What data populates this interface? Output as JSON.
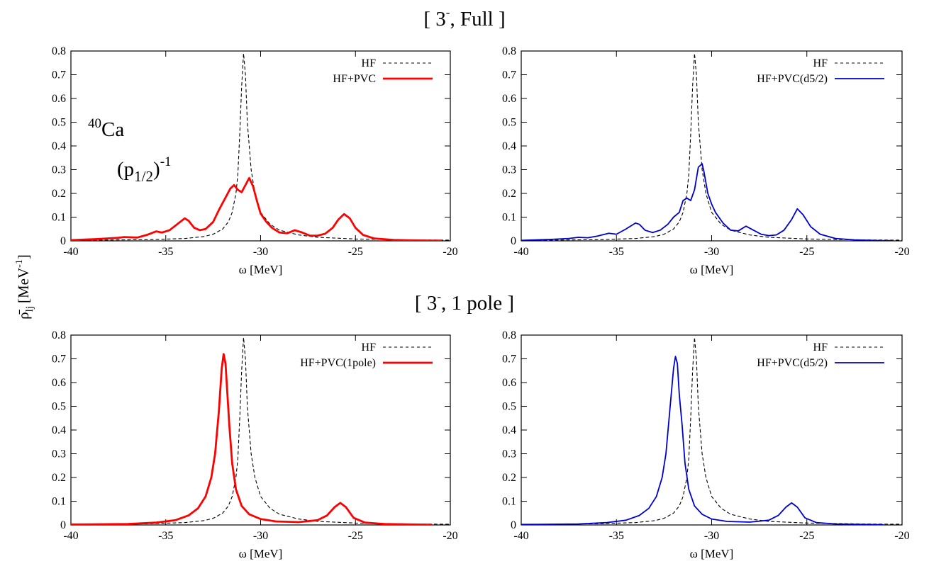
{
  "figure": {
    "row_titles": [
      {
        "base": "[ 3",
        "sup": "-",
        "rest": ", Full ]"
      },
      {
        "base": "[ 3",
        "sup": "-",
        "rest": ", 1 pole ]"
      }
    ],
    "shared_ylabel": {
      "base": "ρ̄",
      "sub": "lj",
      "unit": "[MeV",
      "sup": "-1",
      "close": "]"
    },
    "annotation": {
      "nucleus_mass": "40",
      "nucleus": "Ca",
      "orbital_open": "(p",
      "orbital_sub": "1/2",
      "orbital_close": ")",
      "orbital_sup": "-1"
    },
    "colors": {
      "hf": "#000000",
      "red": "#ff0000",
      "blue": "#0000cc"
    }
  },
  "chart_data": [
    {
      "type": "line",
      "panel": "full-left",
      "xlabel": "ω [MeV]",
      "xlim": [
        -40,
        -20
      ],
      "ylim": [
        0,
        0.8
      ],
      "xticks": [
        -40,
        -35,
        -30,
        -25,
        -20
      ],
      "yticks": [
        0,
        0.1,
        0.2,
        0.3,
        0.4,
        0.5,
        0.6,
        0.7,
        0.8
      ],
      "xtick_labels": [
        "-40",
        "-35",
        "-30",
        "-25",
        "-20"
      ],
      "ytick_labels": [
        "0",
        "0.1",
        "0.2",
        "0.3",
        "0.4",
        "0.5",
        "0.6",
        "0.7",
        "0.8"
      ],
      "legend_position": "top-right",
      "series": [
        {
          "name": "HF",
          "style": "dashed",
          "color": "#000000",
          "x": [
            -40,
            -36,
            -34,
            -33,
            -32.5,
            -32,
            -31.7,
            -31.5,
            -31.3,
            -31.2,
            -31.1,
            -31.0,
            -30.9,
            -30.8,
            -30.7,
            -30.5,
            -30.3,
            -30.0,
            -29.5,
            -29.0,
            -28,
            -27,
            -25,
            -22,
            -20
          ],
          "y": [
            0.002,
            0.005,
            0.01,
            0.018,
            0.028,
            0.05,
            0.08,
            0.12,
            0.2,
            0.28,
            0.45,
            0.65,
            0.79,
            0.7,
            0.5,
            0.3,
            0.2,
            0.12,
            0.07,
            0.045,
            0.025,
            0.015,
            0.008,
            0.004,
            0.003
          ]
        },
        {
          "name": "HF+PVC",
          "style": "solid",
          "color": "#ff0000",
          "x": [
            -40,
            -38.5,
            -37.5,
            -37.2,
            -36.5,
            -36,
            -35.5,
            -35.2,
            -34.8,
            -34.4,
            -34.0,
            -33.8,
            -33.5,
            -33.2,
            -32.9,
            -32.5,
            -32.2,
            -31.8,
            -31.6,
            -31.4,
            -31.2,
            -31.0,
            -30.8,
            -30.6,
            -30.4,
            -30.2,
            -30.0,
            -29.7,
            -29.4,
            -29.0,
            -28.6,
            -28.2,
            -27.8,
            -27.4,
            -27.0,
            -26.6,
            -26.2,
            -25.9,
            -25.6,
            -25.3,
            -25.0,
            -24.6,
            -24.0,
            -23,
            -22,
            -21,
            -20.5
          ],
          "y": [
            0.003,
            0.008,
            0.013,
            0.016,
            0.014,
            0.025,
            0.04,
            0.035,
            0.045,
            0.07,
            0.095,
            0.085,
            0.055,
            0.045,
            0.05,
            0.08,
            0.13,
            0.19,
            0.22,
            0.235,
            0.215,
            0.205,
            0.235,
            0.265,
            0.23,
            0.17,
            0.115,
            0.08,
            0.055,
            0.035,
            0.032,
            0.045,
            0.035,
            0.022,
            0.022,
            0.03,
            0.055,
            0.09,
            0.113,
            0.095,
            0.055,
            0.025,
            0.01,
            0.004,
            0.002,
            0.001,
            0.001
          ]
        }
      ]
    },
    {
      "type": "line",
      "panel": "full-right",
      "xlabel": "ω [MeV]",
      "xlim": [
        -40,
        -20
      ],
      "ylim": [
        0,
        0.8
      ],
      "xticks": [
        -40,
        -35,
        -30,
        -25,
        -20
      ],
      "yticks": [
        0,
        0.1,
        0.2,
        0.3,
        0.4,
        0.5,
        0.6,
        0.7,
        0.8
      ],
      "xtick_labels": [
        "-40",
        "-35",
        "-30",
        "-25",
        "-20"
      ],
      "ytick_labels": [
        "0",
        "0.1",
        "0.2",
        "0.3",
        "0.4",
        "0.5",
        "0.6",
        "0.7",
        "0.8"
      ],
      "legend_position": "top-right",
      "series": [
        {
          "name": "HF",
          "style": "dashed",
          "color": "#000000",
          "x": [
            -40,
            -36,
            -34,
            -33,
            -32.5,
            -32,
            -31.7,
            -31.5,
            -31.3,
            -31.2,
            -31.1,
            -31.0,
            -30.9,
            -30.8,
            -30.7,
            -30.5,
            -30.3,
            -30.0,
            -29.5,
            -29.0,
            -28,
            -27,
            -25,
            -22,
            -20
          ],
          "y": [
            0.002,
            0.005,
            0.01,
            0.018,
            0.028,
            0.05,
            0.08,
            0.12,
            0.2,
            0.28,
            0.45,
            0.65,
            0.79,
            0.7,
            0.5,
            0.3,
            0.2,
            0.12,
            0.07,
            0.045,
            0.025,
            0.015,
            0.008,
            0.004,
            0.003
          ]
        },
        {
          "name": "HF+PVC(d5/2)",
          "style": "solid",
          "color": "#0000cc",
          "x": [
            -40,
            -38.5,
            -37.5,
            -37.0,
            -36.5,
            -36,
            -35.4,
            -35.0,
            -34.5,
            -34.0,
            -33.8,
            -33.5,
            -33.1,
            -32.7,
            -32.3,
            -32.0,
            -31.7,
            -31.5,
            -31.3,
            -31.1,
            -30.9,
            -30.7,
            -30.5,
            -30.4,
            -30.2,
            -30.0,
            -29.8,
            -29.4,
            -29.0,
            -28.6,
            -28.2,
            -27.8,
            -27.4,
            -27.0,
            -26.6,
            -26.2,
            -25.8,
            -25.5,
            -25.2,
            -24.8,
            -24.3,
            -23.5,
            -22.5,
            -21,
            -20.5
          ],
          "y": [
            0.002,
            0.006,
            0.01,
            0.015,
            0.013,
            0.02,
            0.032,
            0.028,
            0.05,
            0.075,
            0.07,
            0.045,
            0.035,
            0.045,
            0.07,
            0.1,
            0.12,
            0.17,
            0.18,
            0.17,
            0.215,
            0.31,
            0.325,
            0.29,
            0.2,
            0.155,
            0.12,
            0.075,
            0.045,
            0.042,
            0.062,
            0.045,
            0.028,
            0.022,
            0.025,
            0.045,
            0.09,
            0.135,
            0.11,
            0.06,
            0.028,
            0.01,
            0.004,
            0.001,
            0.001
          ]
        }
      ]
    },
    {
      "type": "line",
      "panel": "pole-left",
      "xlabel": "ω [MeV]",
      "xlim": [
        -40,
        -20
      ],
      "ylim": [
        0,
        0.8
      ],
      "xticks": [
        -40,
        -35,
        -30,
        -25,
        -20
      ],
      "yticks": [
        0,
        0.1,
        0.2,
        0.3,
        0.4,
        0.5,
        0.6,
        0.7,
        0.8
      ],
      "xtick_labels": [
        "-40",
        "-35",
        "-30",
        "-25",
        "-20"
      ],
      "ytick_labels": [
        "0",
        "0.1",
        "0.2",
        "0.3",
        "0.4",
        "0.5",
        "0.6",
        "0.7",
        "0.8"
      ],
      "legend_position": "top-right",
      "series": [
        {
          "name": "HF",
          "style": "dashed",
          "color": "#000000",
          "x": [
            -40,
            -36,
            -34,
            -33,
            -32.5,
            -32,
            -31.7,
            -31.5,
            -31.3,
            -31.2,
            -31.1,
            -31.0,
            -30.9,
            -30.8,
            -30.7,
            -30.5,
            -30.3,
            -30.0,
            -29.5,
            -29.0,
            -28,
            -27,
            -25,
            -22,
            -20
          ],
          "y": [
            0.002,
            0.005,
            0.01,
            0.018,
            0.028,
            0.05,
            0.08,
            0.12,
            0.2,
            0.28,
            0.45,
            0.65,
            0.79,
            0.7,
            0.5,
            0.3,
            0.2,
            0.12,
            0.07,
            0.045,
            0.025,
            0.015,
            0.008,
            0.004,
            0.003
          ]
        },
        {
          "name": "HF+PVC(1pole)",
          "style": "solid",
          "color": "#ff0000",
          "x": [
            -40,
            -37,
            -35.5,
            -34.5,
            -33.8,
            -33.3,
            -32.9,
            -32.6,
            -32.4,
            -32.2,
            -32.05,
            -31.95,
            -31.85,
            -31.75,
            -31.65,
            -31.5,
            -31.3,
            -31.0,
            -30.6,
            -30.0,
            -29.2,
            -28.0,
            -27.0,
            -26.5,
            -26.1,
            -25.8,
            -25.5,
            -25.1,
            -24.5,
            -23.5,
            -22,
            -21
          ],
          "y": [
            0.002,
            0.004,
            0.01,
            0.02,
            0.04,
            0.07,
            0.12,
            0.2,
            0.3,
            0.48,
            0.66,
            0.72,
            0.68,
            0.55,
            0.42,
            0.26,
            0.15,
            0.08,
            0.045,
            0.025,
            0.015,
            0.012,
            0.02,
            0.04,
            0.075,
            0.093,
            0.075,
            0.03,
            0.01,
            0.004,
            0.002,
            0.001
          ]
        }
      ]
    },
    {
      "type": "line",
      "panel": "pole-right",
      "xlabel": "ω [MeV]",
      "xlim": [
        -40,
        -20
      ],
      "ylim": [
        0,
        0.8
      ],
      "xticks": [
        -40,
        -35,
        -30,
        -25,
        -20
      ],
      "yticks": [
        0,
        0.1,
        0.2,
        0.3,
        0.4,
        0.5,
        0.6,
        0.7,
        0.8
      ],
      "xtick_labels": [
        "-40",
        "-35",
        "-30",
        "-25",
        "-20"
      ],
      "ytick_labels": [
        "0",
        "0.1",
        "0.2",
        "0.3",
        "0.4",
        "0.5",
        "0.6",
        "0.7",
        "0.8"
      ],
      "legend_position": "top-right",
      "series": [
        {
          "name": "HF",
          "style": "dashed",
          "color": "#000000",
          "x": [
            -40,
            -36,
            -34,
            -33,
            -32.5,
            -32,
            -31.7,
            -31.5,
            -31.3,
            -31.2,
            -31.1,
            -31.0,
            -30.9,
            -30.8,
            -30.7,
            -30.5,
            -30.3,
            -30.0,
            -29.5,
            -29.0,
            -28,
            -27,
            -25,
            -22,
            -20
          ],
          "y": [
            0.002,
            0.005,
            0.01,
            0.018,
            0.028,
            0.05,
            0.08,
            0.12,
            0.2,
            0.28,
            0.45,
            0.65,
            0.79,
            0.7,
            0.5,
            0.3,
            0.2,
            0.12,
            0.07,
            0.045,
            0.025,
            0.015,
            0.008,
            0.004,
            0.003
          ]
        },
        {
          "name": "HF+PVC(d5/2)",
          "style": "solid",
          "color": "#0000cc",
          "x": [
            -40,
            -37,
            -35.5,
            -34.5,
            -33.8,
            -33.3,
            -32.9,
            -32.6,
            -32.4,
            -32.2,
            -32.0,
            -31.9,
            -31.8,
            -31.7,
            -31.55,
            -31.4,
            -31.2,
            -30.9,
            -30.5,
            -30.0,
            -29.2,
            -28.0,
            -27.0,
            -26.5,
            -26.1,
            -25.8,
            -25.5,
            -25.1,
            -24.5,
            -23.5,
            -22,
            -21
          ],
          "y": [
            0.002,
            0.004,
            0.01,
            0.02,
            0.04,
            0.07,
            0.12,
            0.2,
            0.3,
            0.48,
            0.66,
            0.71,
            0.68,
            0.55,
            0.42,
            0.26,
            0.15,
            0.08,
            0.045,
            0.025,
            0.015,
            0.012,
            0.02,
            0.04,
            0.075,
            0.093,
            0.075,
            0.03,
            0.01,
            0.004,
            0.002,
            0.001
          ]
        }
      ]
    }
  ]
}
